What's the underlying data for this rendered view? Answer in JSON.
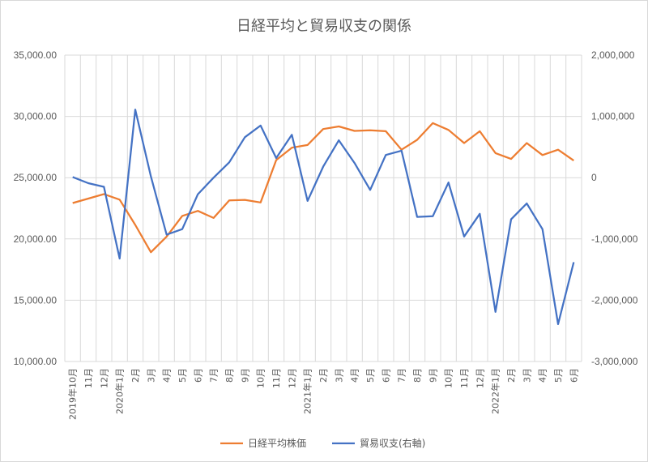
{
  "chart_data": {
    "type": "line",
    "title": "日経平均と貿易収支の関係",
    "x": [
      "2019年10月",
      "11月",
      "12月",
      "2020年1月",
      "2月",
      "3月",
      "4月",
      "5月",
      "6月",
      "7月",
      "8月",
      "9月",
      "10月",
      "11月",
      "12月",
      "2021年1月",
      "2月",
      "3月",
      "4月",
      "5月",
      "6月",
      "7月",
      "8月",
      "9月",
      "10月",
      "11月",
      "12月",
      "2022年1月",
      "2月",
      "3月",
      "4月",
      "5月",
      "6月"
    ],
    "series": [
      {
        "name": "日経平均株価",
        "axis": "left",
        "color": "#ED7D31",
        "values": [
          22927,
          23294,
          23657,
          23205,
          21143,
          18917,
          20193,
          21878,
          22288,
          21710,
          23140,
          23185,
          22977,
          26434,
          27444,
          27663,
          28966,
          29179,
          28813,
          28860,
          28792,
          27284,
          28090,
          29453,
          28893,
          27822,
          28792,
          27002,
          26527,
          27821,
          26848,
          27280,
          26393
        ]
      },
      {
        "name": "貿易収支(右軸)",
        "axis": "right",
        "color": "#4472C4",
        "values": [
          10000,
          -90000,
          -150000,
          -1320000,
          1110000,
          20000,
          -930000,
          -840000,
          -270000,
          0,
          250000,
          660000,
          850000,
          320000,
          700000,
          -380000,
          180000,
          610000,
          240000,
          -200000,
          370000,
          440000,
          -640000,
          -630000,
          -80000,
          -960000,
          -590000,
          -2190000,
          -680000,
          -420000,
          -840000,
          -2390000,
          -1380000
        ]
      }
    ],
    "y_left": {
      "min": 10000,
      "max": 35000,
      "step": 5000,
      "ticks": [
        "10,000.00",
        "15,000.00",
        "20,000.00",
        "25,000.00",
        "30,000.00",
        "35,000.00"
      ]
    },
    "y_right": {
      "min": -3000000,
      "max": 2000000,
      "step": 1000000,
      "ticks": [
        "-3,000,000",
        "-2,000,000",
        "-1,000,000",
        "0",
        "1,000,000",
        "2,000,000"
      ]
    },
    "grid": true,
    "legend_position": "bottom"
  }
}
